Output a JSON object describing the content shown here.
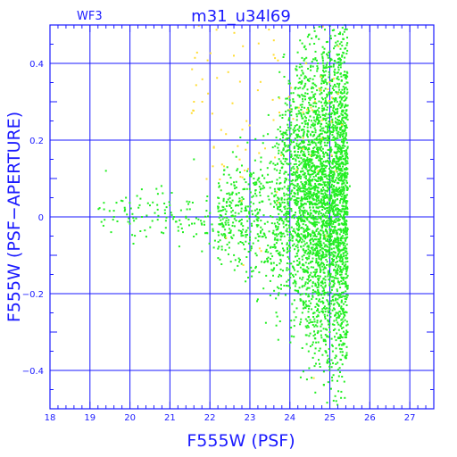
{
  "chart_data": {
    "type": "scatter",
    "title": "m31_u34l69",
    "panel_label": "WF3",
    "xlabel": "F555W (PSF)",
    "ylabel": "F555W (PSF−APERTURE)",
    "xlim": [
      18,
      27.6
    ],
    "ylim": [
      -0.5,
      0.5
    ],
    "x_ticks": [
      "18",
      "19",
      "20",
      "21",
      "22",
      "23",
      "24",
      "25",
      "26",
      "27"
    ],
    "y_ticks": [
      "0.4",
      "0.2",
      "0",
      "−0.2",
      "−0.4"
    ],
    "grid": true,
    "colors": {
      "axis": "#1a1aff",
      "grid": "#1a1aff",
      "main_points": "#22ee22",
      "secondary_points": "#ffdd33"
    },
    "series": [
      {
        "color": "#22ee22",
        "x": [
          19.4,
          19.6,
          19.9,
          20.1,
          20.3,
          20.5,
          20.7,
          20.9,
          21.1,
          21.3,
          21.5,
          21.6,
          21.8,
          22.0,
          22.1,
          22.2,
          22.4,
          22.5,
          22.6,
          22.8,
          22.9,
          23.0,
          23.1,
          23.2,
          23.3,
          23.4,
          23.5,
          23.6,
          23.7,
          23.8,
          23.9,
          24.0,
          24.1,
          24.2,
          24.3,
          24.4,
          24.5,
          24.6,
          24.7,
          24.8,
          24.9,
          25.0,
          25.1,
          25.2,
          25.3,
          25.4,
          25.5
        ],
        "y": [
          0.12,
          0.0,
          0.05,
          -0.01,
          0.0,
          0.03,
          0.06,
          -0.01,
          0.0,
          -0.03,
          0.02,
          0.15,
          -0.02,
          0.01,
          -0.08,
          0.05,
          -0.02,
          0.03,
          0.09,
          -0.04,
          0.02,
          -0.06,
          0.1,
          -0.01,
          0.04,
          -0.09,
          0.14,
          -0.12,
          0.18,
          -0.05,
          0.22,
          -0.15,
          0.3,
          -0.08,
          0.35,
          -0.2,
          0.45,
          -0.25,
          0.4,
          -0.28,
          0.3,
          -0.3,
          0.2,
          -0.1,
          0.12,
          0.05,
          0.08
        ]
      },
      {
        "color": "#ffdd33",
        "x": [
          21.6,
          22.1,
          22.6,
          23.2,
          23.6,
          24.0,
          24.4,
          24.7,
          24.9,
          25.1,
          25.3,
          24.6
        ],
        "y": [
          0.3,
          0.18,
          0.42,
          0.33,
          0.46,
          0.28,
          0.4,
          0.12,
          -0.05,
          0.36,
          0.24,
          -0.42
        ]
      }
    ],
    "point_clouds": [
      {
        "color": "#22ee22",
        "count": 120,
        "x_range": [
          19.2,
          22.6
        ],
        "y_center": 0.0,
        "y_spread": 0.025,
        "spread_growth": 0.02
      },
      {
        "color": "#22ee22",
        "count": 420,
        "x_range": [
          22.2,
          23.8
        ],
        "y_center": 0.0,
        "y_spread": 0.05,
        "spread_growth": 0.08
      },
      {
        "color": "#22ee22",
        "count": 3400,
        "x_range": [
          23.6,
          25.45
        ],
        "y_center": 0.06,
        "y_spread": 0.13,
        "spread_growth": 0.12
      },
      {
        "color": "#ffdd33",
        "count": 90,
        "x_range": [
          21.5,
          25.3
        ],
        "y_center": 0.25,
        "y_spread": 0.15,
        "spread_growth": 0.0
      }
    ]
  }
}
